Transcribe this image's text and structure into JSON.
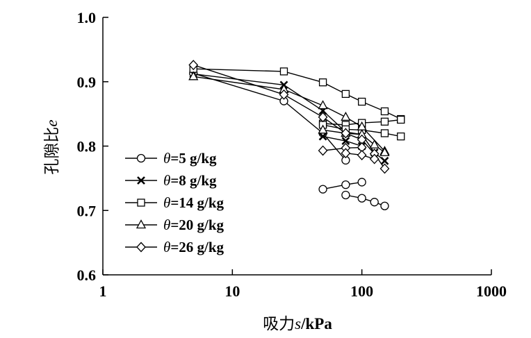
{
  "chart_data": {
    "type": "scatter",
    "xscale": "log",
    "xlim": [
      1,
      1000
    ],
    "ylim": [
      0.6,
      1.0
    ],
    "xticks": [
      1,
      10,
      100,
      1000
    ],
    "xtick_labels": [
      "1",
      "10",
      "100",
      "1000"
    ],
    "yticks": [
      0.6,
      0.7,
      0.8,
      0.9,
      1.0
    ],
    "ytick_labels": [
      "0.6",
      "0.7",
      "0.8",
      "0.9",
      "1.0"
    ],
    "xlabel": {
      "prefix": "吸力",
      "var": "s",
      "unit": "/kPa"
    },
    "ylabel": {
      "prefix": "孔隙比",
      "var": "e"
    },
    "grid": false,
    "legend_position": "bottom-left",
    "series": [
      {
        "name": "θ=5 g/kg",
        "legend_var": "θ",
        "legend_rest": "=5 g/kg",
        "marker": "circle",
        "color": "#000000",
        "segments": [
          [
            [
              5,
              0.913
            ],
            [
              25,
              0.87
            ],
            [
              50,
              0.82
            ],
            [
              75,
              0.778
            ]
          ],
          [
            [
              50,
              0.733
            ],
            [
              75,
              0.74
            ],
            [
              100,
              0.744
            ]
          ],
          [
            [
              75,
              0.724
            ],
            [
              100,
              0.719
            ],
            [
              125,
              0.713
            ],
            [
              150,
              0.707
            ]
          ]
        ]
      },
      {
        "name": "θ=8 g/kg",
        "legend_var": "θ",
        "legend_rest": "=8 g/kg",
        "marker": "x",
        "color": "#000000",
        "segments": [
          [
            [
              5,
              0.912
            ],
            [
              25,
              0.895
            ],
            [
              50,
              0.855
            ],
            [
              75,
              0.822
            ],
            [
              100,
              0.818
            ],
            [
              125,
              0.79
            ],
            [
              150,
              0.777
            ]
          ],
          [
            [
              50,
              0.815
            ],
            [
              75,
              0.808
            ],
            [
              100,
              0.8
            ]
          ]
        ]
      },
      {
        "name": "θ=14 g/kg",
        "legend_var": "θ",
        "legend_rest": "=14 g/kg",
        "marker": "square",
        "color": "#000000",
        "segments": [
          [
            [
              5,
              0.92
            ],
            [
              25,
              0.916
            ],
            [
              50,
              0.899
            ],
            [
              75,
              0.881
            ],
            [
              100,
              0.869
            ],
            [
              150,
              0.854
            ],
            [
              200,
              0.842
            ]
          ],
          [
            [
              50,
              0.835
            ],
            [
              75,
              0.833
            ],
            [
              100,
              0.836
            ],
            [
              150,
              0.838
            ],
            [
              200,
              0.841
            ]
          ],
          [
            [
              50,
              0.833
            ],
            [
              75,
              0.826
            ],
            [
              100,
              0.825
            ],
            [
              150,
              0.82
            ],
            [
              200,
              0.815
            ]
          ]
        ]
      },
      {
        "name": "θ=20 g/kg",
        "legend_var": "θ",
        "legend_rest": "=20 g/kg",
        "marker": "triangle",
        "color": "#000000",
        "segments": [
          [
            [
              5,
              0.908
            ],
            [
              25,
              0.888
            ],
            [
              50,
              0.863
            ],
            [
              75,
              0.845
            ],
            [
              100,
              0.83
            ],
            [
              150,
              0.792
            ]
          ],
          [
            [
              50,
              0.825
            ],
            [
              75,
              0.82
            ],
            [
              100,
              0.818
            ],
            [
              125,
              0.802
            ],
            [
              150,
              0.79
            ]
          ]
        ]
      },
      {
        "name": "θ=26 g/kg",
        "legend_var": "θ",
        "legend_rest": "=26 g/kg",
        "marker": "diamond",
        "color": "#000000",
        "segments": [
          [
            [
              5,
              0.926
            ],
            [
              25,
              0.88
            ],
            [
              50,
              0.845
            ],
            [
              75,
              0.82
            ],
            [
              100,
              0.81
            ],
            [
              125,
              0.788
            ],
            [
              150,
              0.765
            ]
          ],
          [
            [
              50,
              0.793
            ],
            [
              75,
              0.797
            ],
            [
              100,
              0.798
            ]
          ],
          [
            [
              75,
              0.789
            ],
            [
              100,
              0.786
            ],
            [
              125,
              0.78
            ]
          ]
        ]
      }
    ]
  }
}
